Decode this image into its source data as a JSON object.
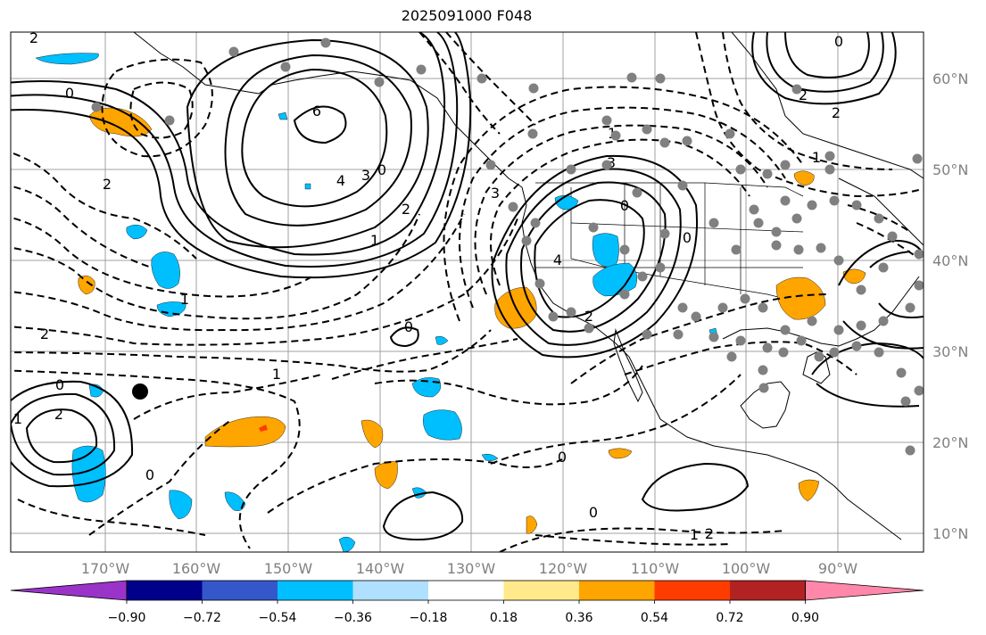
{
  "title": "2025091000 F048",
  "lon_ticks": [
    "170°W",
    "160°W",
    "150°W",
    "140°W",
    "130°W",
    "120°W",
    "110°W",
    "100°W",
    "90°W"
  ],
  "lat_ticks": [
    "60°N",
    "50°N",
    "40°N",
    "30°N",
    "20°N",
    "10°N"
  ],
  "colorbar": {
    "labels": [
      "−0.90",
      "−0.72",
      "−0.54",
      "−0.36",
      "−0.18",
      "0.18",
      "0.36",
      "0.54",
      "0.72",
      "0.90"
    ],
    "colors": [
      "#9a34c9",
      "#00008b",
      "#3457c9",
      "#00bfff",
      "#b0e0ff",
      "#ffffff",
      "#ffe98a",
      "#ffa500",
      "#ff3c00",
      "#b22222",
      "#ff88aa"
    ]
  },
  "contour_labels": [
    "0",
    "2",
    "6",
    "4",
    "3",
    "0",
    "2",
    "1",
    "2",
    "0",
    "0",
    "1",
    "1",
    "2",
    "3",
    "4",
    "2",
    "0",
    "3",
    "0",
    "1",
    "0",
    "2",
    "1",
    "2",
    "0",
    "0",
    "1",
    "0",
    "2",
    "1",
    "2"
  ],
  "colors": {
    "positive": "#ffa500",
    "negative": "#00bfff",
    "station": "#808080",
    "marker": "#000000"
  }
}
